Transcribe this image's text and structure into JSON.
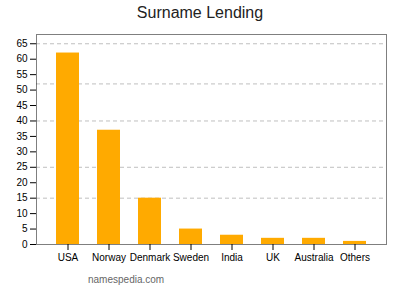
{
  "chart_data": {
    "type": "bar",
    "title": "Surname Lending",
    "categories": [
      "USA",
      "Norway",
      "Denmark",
      "Sweden",
      "India",
      "UK",
      "Australia",
      "Others"
    ],
    "values": [
      62,
      37,
      15,
      5,
      3,
      2,
      2,
      1
    ],
    "color": "#FFAA00",
    "ylim": [
      0,
      68
    ],
    "yticks": [
      0,
      5,
      10,
      15,
      20,
      25,
      30,
      35,
      40,
      45,
      50,
      55,
      60,
      65
    ],
    "gridlines": [
      15,
      25,
      40,
      52,
      65
    ],
    "caption": "namespedia.com"
  }
}
